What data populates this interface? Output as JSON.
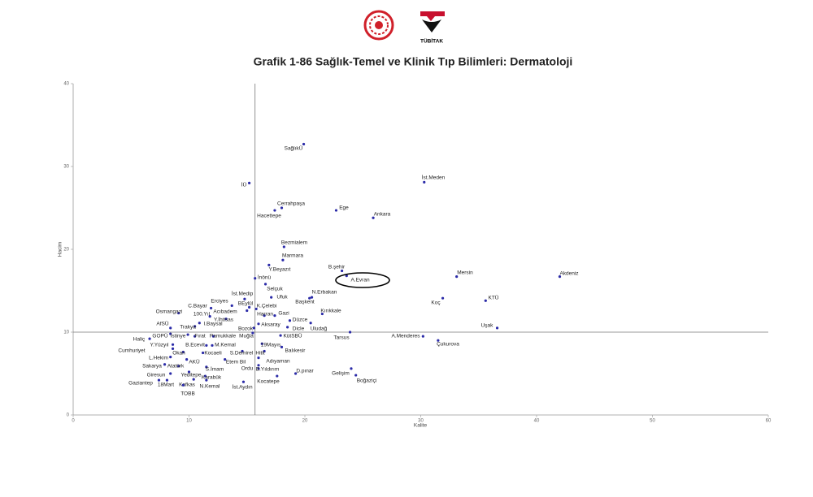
{
  "header": {
    "logo_text": "TÜBİTAK"
  },
  "chart_data": {
    "type": "scatter",
    "title": "Grafik 1-86 Sağlık-Temel ve Klinik Tıp Bilimleri: Dermatoloji",
    "x_label": "Kalite",
    "y_label": "Hacim",
    "xlim": [
      0,
      60
    ],
    "xticks": [
      0,
      10,
      20,
      30,
      40,
      50,
      60
    ],
    "ylim": [
      0,
      40
    ],
    "yticks": [
      0,
      10,
      20,
      30,
      40
    ],
    "reference_lines": {
      "x": 15.7,
      "y": 10
    },
    "color": "#2b2ba8",
    "labels": [
      "SağlıkÜ",
      "İst.Meden",
      "İÜ",
      "Cerrahpaşa",
      "Hacettepe",
      "Ege",
      "Ankara",
      "Bezmialem",
      "Marmara",
      "Y.Beyazıt",
      "B.şehir",
      "A.Evran",
      "Mersin",
      "Akdeniz",
      "İnönü",
      "Selçuk",
      "N.Erbakan",
      "Başkent",
      "Ufuk",
      "Koç",
      "KTÜ",
      "İst.Medip",
      "Erciyes",
      "BEylül",
      "C.Bayar",
      "K.Çelebi",
      "Acıbadem",
      "Osmangazi",
      "Kırıkkale",
      "Harran",
      "Gazi",
      "100.Yıl",
      "Y.İhtisas",
      "Düzce",
      "I.Baysal",
      "Aksaray",
      "Bozok",
      "AfSÜ",
      "Trakya",
      "Dicle",
      "Uludağ",
      "Uşak",
      "Tarsus",
      "Muğla",
      "KütSBÜ",
      "GOPÜ",
      "İstinye",
      "Fırat",
      "Pamukkale",
      "A.Menderes",
      "Haliç",
      "Çukurova",
      "Y.Yüzyıl",
      "B.Ecevit",
      "M.Kemal",
      "19Mayıs",
      "Hitit",
      "Balıkesir",
      "Cumhuriyet",
      "Okan",
      "Kocaeli",
      "S.Demirel",
      "L.Hekim",
      "AKÜ",
      "Etem Bil",
      "Adıyaman",
      "Sakarya",
      "Atatürk",
      "Ordu",
      "S.İmam",
      "B.Yıldırım",
      "D.pınar",
      "Gelişim",
      "Boğaziçi",
      "Giresun",
      "Yeditepe",
      "Karabük",
      "Kocatepe",
      "Gaziantep",
      "18Mart",
      "Kafkas",
      "N.Kemal",
      "İst.Aydın",
      "TOBB"
    ],
    "x": [
      19.9,
      30.3,
      15.2,
      18.0,
      17.4,
      22.7,
      25.9,
      18.2,
      18.1,
      16.9,
      23.2,
      23.6,
      33.1,
      42.0,
      15.7,
      16.6,
      20.6,
      20.4,
      17.1,
      31.9,
      35.6,
      14.8,
      13.7,
      15.2,
      11.9,
      15.8,
      15.0,
      9.1,
      21.5,
      16.5,
      17.4,
      11.8,
      13.2,
      18.7,
      10.9,
      16.0,
      15.6,
      8.4,
      10.5,
      18.5,
      20.5,
      36.6,
      23.9,
      15.5,
      17.9,
      8.4,
      9.9,
      10.5,
      12.1,
      30.2,
      6.6,
      31.5,
      8.6,
      11.5,
      12.0,
      16.3,
      16.5,
      18.0,
      8.6,
      9.5,
      11.2,
      14.6,
      8.4,
      9.8,
      13.1,
      16.0,
      7.9,
      9.1,
      16.0,
      11.5,
      16.0,
      19.2,
      24.0,
      24.4,
      8.4,
      10.0,
      11.4,
      17.6,
      7.4,
      8.1,
      10.4,
      11.5,
      14.7,
      9.5
    ],
    "values": [
      32.7,
      28.1,
      28.0,
      25.0,
      24.7,
      24.7,
      23.8,
      20.3,
      18.7,
      18.1,
      17.4,
      16.8,
      16.7,
      16.7,
      16.5,
      15.8,
      14.2,
      14.1,
      14.2,
      14.1,
      13.8,
      14.0,
      13.2,
      13.0,
      12.9,
      12.8,
      12.6,
      12.3,
      12.2,
      12.0,
      12.0,
      11.9,
      11.6,
      11.4,
      11.1,
      11.0,
      10.5,
      10.5,
      10.7,
      10.6,
      11.1,
      10.5,
      10.0,
      9.9,
      9.6,
      9.8,
      9.7,
      9.5,
      9.5,
      9.5,
      9.2,
      9.0,
      8.5,
      8.4,
      8.4,
      8.6,
      7.7,
      8.2,
      8.0,
      7.6,
      7.5,
      7.7,
      7.0,
      6.7,
      6.7,
      6.9,
      6.1,
      5.9,
      6.0,
      5.8,
      5.6,
      5.0,
      5.6,
      4.8,
      5.0,
      5.2,
      4.7,
      4.7,
      4.2,
      4.2,
      4.3,
      4.2,
      4.0,
      3.6
    ]
  }
}
